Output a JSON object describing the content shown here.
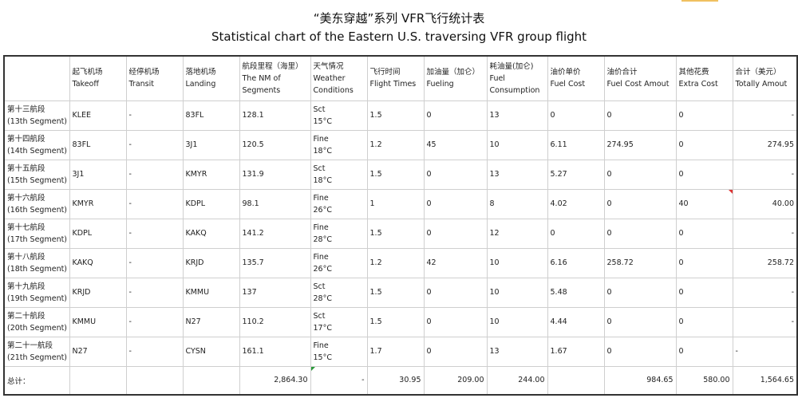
{
  "title_cn": "“美东穿越”系列 VFR飞行统计表",
  "title_en": "Statistical chart of the Eastern U.S. traversing VFR group flight",
  "headers": [
    {
      "cn": "",
      "en": ""
    },
    {
      "cn": "起飞机场",
      "en": "Takeoff"
    },
    {
      "cn": "经停机场",
      "en": "Transit"
    },
    {
      "cn": "落地机场",
      "en": "Landing"
    },
    {
      "cn": "航段里程（海里）",
      "en": "The NM of",
      "en2": "Segments"
    },
    {
      "cn": "天气情况",
      "en": "Weather",
      "en2": "Conditions"
    },
    {
      "cn": "飞行时间",
      "en": "Flight Times"
    },
    {
      "cn": "加油量（加仑）",
      "en": "Fueling"
    },
    {
      "cn": "耗油量(加仑)",
      "en": "Fuel",
      "en2": "Consumption"
    },
    {
      "cn": "油价单价",
      "en": "Fuel Cost"
    },
    {
      "cn": "油价合计",
      "en": "Fuel Cost Amout"
    },
    {
      "cn": "其他花费",
      "en": "Extra Cost"
    },
    {
      "cn": "合计（美元）",
      "en": "Totally Amout"
    }
  ],
  "rows": [
    {
      "seg_cn": "第十三航段",
      "seg_en": "(13th Segment)",
      "takeoff": "KLEE",
      "transit": "-",
      "landing": "83FL",
      "nm": "128.1",
      "wx": "Sct",
      "temp": "15°C",
      "time": "1.5",
      "fueling": "0",
      "consumption": "13",
      "unit": "0",
      "fuel_total": "0",
      "extra": "0",
      "total": "-"
    },
    {
      "seg_cn": "第十四航段",
      "seg_en": "(14th Segment)",
      "takeoff": "83FL",
      "transit": "-",
      "landing": "3J1",
      "nm": "120.5",
      "wx": "Fine",
      "temp": "18°C",
      "time": "1.2",
      "fueling": "45",
      "consumption": "10",
      "unit": "6.11",
      "fuel_total": "274.95",
      "extra": "0",
      "total": "274.95"
    },
    {
      "seg_cn": "第十五航段",
      "seg_en": "(15th Segment)",
      "takeoff": "3J1",
      "transit": "-",
      "landing": "KMYR",
      "nm": "131.9",
      "wx": "Sct",
      "temp": "18°C",
      "time": "1.5",
      "fueling": "0",
      "consumption": "13",
      "unit": "5.27",
      "fuel_total": "0",
      "extra": "0",
      "total": "-"
    },
    {
      "seg_cn": "第十六航段",
      "seg_en": "(16th Segment)",
      "takeoff": "KMYR",
      "transit": "-",
      "landing": "KDPL",
      "nm": "98.1",
      "wx": "Fine",
      "temp": "26°C",
      "time": "1",
      "fueling": "0",
      "consumption": "8",
      "unit": "4.02",
      "fuel_total": "0",
      "extra": "40",
      "total": "40.00"
    },
    {
      "seg_cn": "第十七航段",
      "seg_en": "(17th Segment)",
      "takeoff": "KDPL",
      "transit": "-",
      "landing": "KAKQ",
      "nm": "141.2",
      "wx": "Fine",
      "temp": "28°C",
      "time": "1.5",
      "fueling": "0",
      "consumption": "12",
      "unit": "0",
      "fuel_total": "0",
      "extra": "0",
      "total": "-"
    },
    {
      "seg_cn": "第十八航段",
      "seg_en": "(18th Segment)",
      "takeoff": "KAKQ",
      "transit": "-",
      "landing": "KRJD",
      "nm": "135.7",
      "wx": "Fine",
      "temp": "26°C",
      "time": "1.2",
      "fueling": "42",
      "consumption": "10",
      "unit": "6.16",
      "fuel_total": "258.72",
      "extra": "0",
      "total": "258.72"
    },
    {
      "seg_cn": "第十九航段",
      "seg_en": "(19th Segment)",
      "takeoff": "KRJD",
      "transit": "-",
      "landing": "KMMU",
      "nm": "137",
      "wx": "Sct",
      "temp": "28°C",
      "time": "1.5",
      "fueling": "0",
      "consumption": "10",
      "unit": "5.48",
      "fuel_total": "0",
      "extra": "0",
      "total": "-"
    },
    {
      "seg_cn": "第二十航段",
      "seg_en": "(20th Segment)",
      "takeoff": "KMMU",
      "transit": "-",
      "landing": "N27",
      "nm": "110.2",
      "wx": "Sct",
      "temp": "17°C",
      "time": "1.5",
      "fueling": "0",
      "consumption": "10",
      "unit": "4.44",
      "fuel_total": "0",
      "extra": "0",
      "total": "-"
    },
    {
      "seg_cn": "第二十一航段",
      "seg_en": "(21th Segment)",
      "takeoff": "N27",
      "transit": "-",
      "landing": "CYSN",
      "nm": "161.1",
      "wx": "Fine",
      "temp": "15°C",
      "time": "1.7",
      "fueling": "0",
      "consumption": "13",
      "unit": "1.67",
      "fuel_total": "0",
      "extra": "0",
      "total": "-"
    }
  ],
  "totals": {
    "label": "总计：",
    "nm": "2,864.30",
    "wx": "-",
    "time": "30.95",
    "fueling": "209.00",
    "consumption": "244.00",
    "fuel_total": "984.65",
    "extra": "580.00",
    "total": "1,564.65"
  }
}
